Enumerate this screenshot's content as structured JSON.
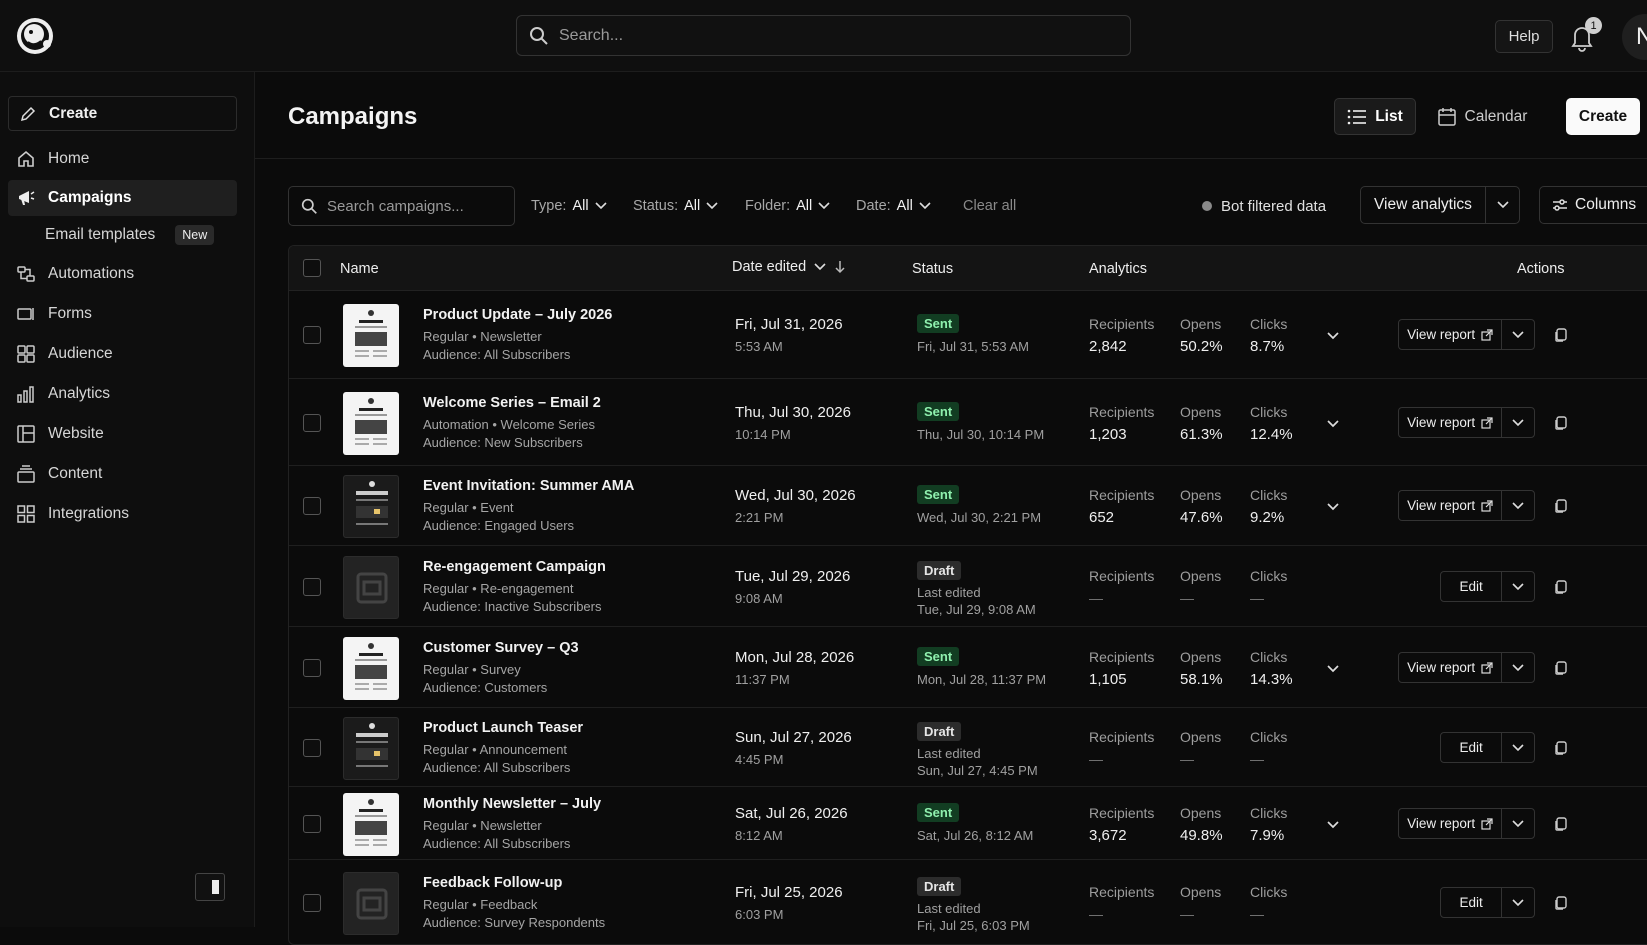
{
  "header": {
    "search_placeholder": "Search...",
    "help_label": "Help",
    "notification_count": "1",
    "avatar_initial": "N"
  },
  "sidebar": {
    "create_label": "Create",
    "items": [
      {
        "label": "Home",
        "icon": "home-icon"
      },
      {
        "label": "Campaigns",
        "icon": "megaphone-icon",
        "active": true
      },
      {
        "label": "Email templates",
        "badge": "New"
      },
      {
        "label": "Automations",
        "icon": "automations-icon"
      },
      {
        "label": "Forms",
        "icon": "forms-icon"
      },
      {
        "label": "Audience",
        "icon": "audience-icon"
      },
      {
        "label": "Analytics",
        "icon": "analytics-icon"
      },
      {
        "label": "Website",
        "icon": "website-icon"
      },
      {
        "label": "Content",
        "icon": "content-icon"
      },
      {
        "label": "Integrations",
        "icon": "integrations-icon"
      }
    ]
  },
  "page": {
    "title": "Campaigns",
    "view_list": "List",
    "view_calendar": "Calendar",
    "create_label": "Create"
  },
  "toolbar": {
    "search_placeholder": "Search campaigns...",
    "filters": [
      {
        "label": "Type:",
        "value": "All"
      },
      {
        "label": "Status:",
        "value": "All"
      },
      {
        "label": "Folder:",
        "value": "All"
      },
      {
        "label": "Date:",
        "value": "All"
      }
    ],
    "clear_all": "Clear all",
    "bot_filtered": "Bot filtered data",
    "view_analytics": "View analytics",
    "columns": "Columns"
  },
  "table": {
    "headers": {
      "name": "Name",
      "date_edited": "Date edited",
      "status": "Status",
      "analytics": "Analytics",
      "actions": "Actions"
    },
    "metric_labels": {
      "recipients": "Recipients",
      "opens": "Opens",
      "clicks": "Clicks"
    },
    "rows": [
      {
        "name": "Product Update – July 2026",
        "type": "Regular • Newsletter",
        "audience": "Audience: All Subscribers",
        "date": "Fri, Jul 31, 2026",
        "time": "5:53 AM",
        "status": "Sent",
        "status_detail": "Fri, Jul 31, 5:53 AM",
        "recipients": "2,842",
        "opens": "50.2%",
        "clicks": "8.7%",
        "action": "View report",
        "thumb": "light"
      },
      {
        "name": "Welcome Series – Email 2",
        "type": "Automation • Welcome Series",
        "audience": "Audience: New Subscribers",
        "date": "Thu, Jul 30, 2026",
        "time": "10:14 PM",
        "status": "Sent",
        "status_detail": "Thu, Jul 30, 10:14 PM",
        "recipients": "1,203",
        "opens": "61.3%",
        "clicks": "12.4%",
        "action": "View report",
        "thumb": "light"
      },
      {
        "name": "Event Invitation: Summer AMA",
        "type": "Regular • Event",
        "audience": "Audience: Engaged Users",
        "date": "Wed, Jul 30, 2026",
        "time": "2:21 PM",
        "status": "Sent",
        "status_detail": "Wed, Jul 30, 2:21 PM",
        "recipients": "652",
        "opens": "47.6%",
        "clicks": "9.2%",
        "action": "View report",
        "thumb": "dark"
      },
      {
        "name": "Re-engagement Campaign",
        "type": "Regular • Re-engagement",
        "audience": "Audience: Inactive Subscribers",
        "date": "Tue, Jul 29, 2026",
        "time": "9:08 AM",
        "status": "Draft",
        "status_detail_1": "Last edited",
        "status_detail": "Tue, Jul 29, 9:08 AM",
        "recipients": "—",
        "opens": "—",
        "clicks": "—",
        "action": "Edit",
        "thumb": "blank"
      },
      {
        "name": "Customer Survey – Q3",
        "type": "Regular • Survey",
        "audience": "Audience: Customers",
        "date": "Mon, Jul 28, 2026",
        "time": "11:37 PM",
        "status": "Sent",
        "status_detail": "Mon, Jul 28, 11:37 PM",
        "recipients": "1,105",
        "opens": "58.1%",
        "clicks": "14.3%",
        "action": "View report",
        "thumb": "light"
      },
      {
        "name": "Product Launch Teaser",
        "type": "Regular • Announcement",
        "audience": "Audience: All Subscribers",
        "date": "Sun, Jul 27, 2026",
        "time": "4:45 PM",
        "status": "Draft",
        "status_detail_1": "Last edited",
        "status_detail": "Sun, Jul 27, 4:45 PM",
        "recipients": "—",
        "opens": "—",
        "clicks": "—",
        "action": "Edit",
        "thumb": "dark"
      },
      {
        "name": "Monthly Newsletter – July",
        "type": "Regular • Newsletter",
        "audience": "Audience: All Subscribers",
        "date": "Sat, Jul 26, 2026",
        "time": "8:12 AM",
        "status": "Sent",
        "status_detail": "Sat, Jul 26, 8:12 AM",
        "recipients": "3,672",
        "opens": "49.8%",
        "clicks": "7.9%",
        "action": "View report",
        "thumb": "light"
      },
      {
        "name": "Feedback Follow-up",
        "type": "Regular • Feedback",
        "audience": "Audience: Survey Respondents",
        "date": "Fri, Jul 25, 2026",
        "time": "6:03 PM",
        "status": "Draft",
        "status_detail_1": "Last edited",
        "status_detail": "Fri, Jul 25, 6:03 PM",
        "recipients": "—",
        "opens": "—",
        "clicks": "—",
        "action": "Edit",
        "thumb": "blank"
      }
    ]
  }
}
